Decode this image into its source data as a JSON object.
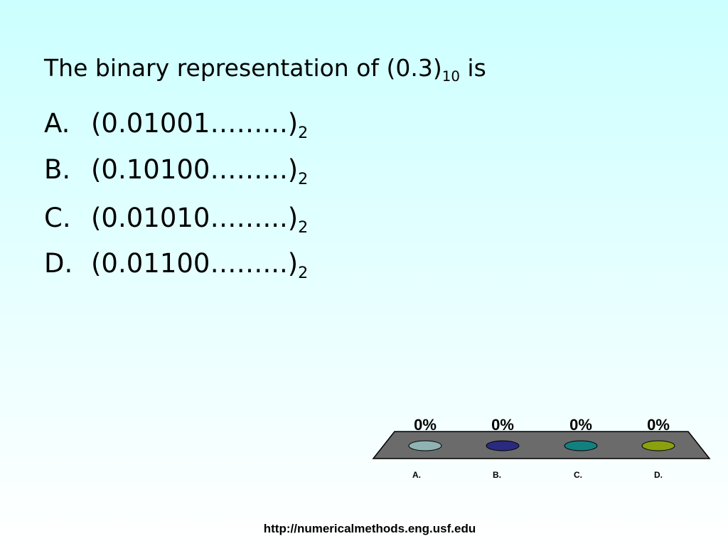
{
  "question": {
    "text": "The binary representation of (0.3)",
    "subscript": "10",
    "tail": " is"
  },
  "options": [
    {
      "label": "A.",
      "text": "(0.01001……...)",
      "subscript": "2"
    },
    {
      "label": "B.",
      "text": "(0.10100……...)",
      "subscript": "2"
    },
    {
      "label": "C.",
      "text": "(0.01010……...)",
      "subscript": "2"
    },
    {
      "label": "D.",
      "text": "(0.01100……...)",
      "subscript": "2"
    }
  ],
  "chart_data": {
    "type": "bar",
    "categories": [
      "A.",
      "B.",
      "C.",
      "D."
    ],
    "values": [
      0,
      0,
      0,
      0
    ],
    "value_labels": [
      "0%",
      "0%",
      "0%",
      "0%"
    ],
    "colors": [
      "#8fb3b3",
      "#2a2a80",
      "#138080",
      "#8aa00e"
    ]
  },
  "footer": "http://numericalmethods.eng.usf.edu"
}
